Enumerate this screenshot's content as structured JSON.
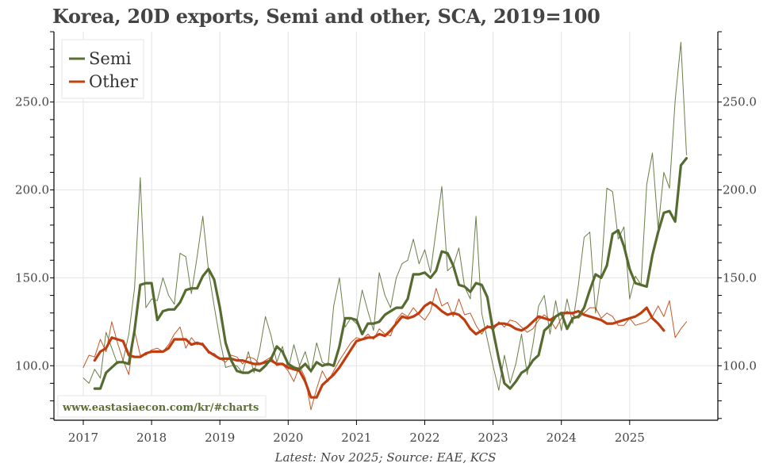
{
  "chart_data": {
    "type": "line",
    "title": "Korea, 20D exports, Semi and other, SCA, 2019=100",
    "xlabel": "",
    "ylabel": "",
    "source_note": "Latest: Nov 2025; Source: EAE, KCS",
    "watermark": "www.eastasiaecon.com/kr/#charts",
    "x_start": "2017-01",
    "x_end": "2025-11",
    "frequency": "monthly",
    "x_ticks": [
      "2017",
      "2018",
      "2019",
      "2020",
      "2021",
      "2022",
      "2023",
      "2024",
      "2025"
    ],
    "y_ticks": [
      "100.0",
      "150.0",
      "200.0",
      "250.0"
    ],
    "y_tick_values": [
      100,
      150,
      200,
      250
    ],
    "ylim": [
      69,
      290
    ],
    "y_minor_step": 10,
    "grid": true,
    "legend_position": "top-left",
    "dual_y_axis_mirror": true,
    "series": [
      {
        "name": "Semi",
        "legend": true,
        "style": "thin",
        "color": "#5a7034",
        "values": [
          93,
          90,
          98,
          93,
          119,
          110,
          101,
          103,
          118,
          144,
          207,
          133,
          138,
          137,
          150,
          140,
          135,
          164,
          162,
          141,
          162,
          185,
          154,
          134,
          115,
          99,
          100,
          100,
          96,
          108,
          96,
          109,
          128,
          117,
          102,
          111,
          98,
          112,
          100,
          108,
          96,
          113,
          102,
          100,
          134,
          150,
          122,
          127,
          124,
          143,
          131,
          120,
          153,
          140,
          133,
          150,
          158,
          160,
          172,
          158,
          166,
          153,
          177,
          202,
          154,
          157,
          167,
          145,
          138,
          185,
          130,
          115,
          100,
          86,
          106,
          90,
          101,
          118,
          95,
          112,
          134,
          140,
          118,
          137,
          120,
          138,
          124,
          146,
          173,
          176,
          130,
          153,
          201,
          199,
          172,
          179,
          138,
          151,
          146,
          203,
          221,
          178,
          210,
          201,
          251,
          284,
          220
        ]
      },
      {
        "name": "Semi 3mma",
        "legend": false,
        "style": "thick",
        "color": "#556b2f",
        "start_offset": 2,
        "values": [
          87,
          87,
          96,
          99,
          102,
          102,
          101,
          120,
          146,
          147,
          147,
          126,
          131,
          132,
          132,
          136,
          143,
          144,
          144,
          151,
          155,
          149,
          133,
          113,
          103,
          97,
          96,
          96,
          98,
          97,
          100,
          104,
          111,
          108,
          101,
          99,
          98,
          101,
          97,
          102,
          100,
          101,
          100,
          111,
          127,
          127,
          126,
          118,
          124,
          124,
          125,
          129,
          131,
          133,
          133,
          138,
          152,
          152,
          153,
          150,
          154,
          165,
          164,
          157,
          146,
          145,
          142,
          147,
          146,
          139,
          120,
          104,
          90,
          87,
          91,
          96,
          98,
          103,
          106,
          120,
          123,
          128,
          130,
          121,
          127,
          128,
          133,
          143,
          152,
          150,
          157,
          175,
          177,
          168,
          155,
          147,
          146,
          145,
          163,
          176,
          187,
          188,
          182,
          214,
          218
        ]
      },
      {
        "name": "Other",
        "legend": true,
        "style": "thin",
        "color": "#c0440e",
        "values": [
          99,
          106,
          105,
          115,
          108,
          125,
          113,
          103,
          95,
          120,
          106,
          106,
          109,
          110,
          108,
          112,
          118,
          122,
          110,
          116,
          112,
          113,
          107,
          107,
          104,
          102,
          106,
          105,
          101,
          105,
          104,
          101,
          103,
          105,
          100,
          101,
          97,
          91,
          100,
          93,
          75,
          87,
          97,
          91,
          97,
          103,
          108,
          113,
          116,
          115,
          118,
          115,
          121,
          118,
          117,
          126,
          130,
          128,
          133,
          129,
          126,
          131,
          144,
          134,
          136,
          128,
          138,
          129,
          130,
          123,
          118,
          123,
          120,
          125,
          122,
          126,
          125,
          122,
          119,
          121,
          126,
          129,
          126,
          121,
          127,
          131,
          129,
          127,
          130,
          133,
          133,
          127,
          130,
          128,
          123,
          123,
          127,
          123,
          124,
          125,
          128,
          134,
          128,
          137,
          116,
          121,
          125
        ]
      },
      {
        "name": "Other 3mma",
        "legend": false,
        "style": "thick",
        "color": "#bf3d0e",
        "start_offset": 2,
        "values": [
          103,
          108,
          110,
          116,
          115,
          114,
          106,
          105,
          105,
          107,
          108,
          108,
          108,
          110,
          115,
          115,
          115,
          112,
          113,
          112,
          108,
          106,
          104,
          104,
          104,
          103,
          103,
          102,
          101,
          101,
          102,
          103,
          101,
          101,
          99,
          98,
          97,
          91,
          82,
          82,
          89,
          92,
          95,
          99,
          104,
          109,
          114,
          115,
          116,
          116,
          118,
          117,
          120,
          124,
          128,
          127,
          128,
          130,
          134,
          136,
          134,
          131,
          129,
          130,
          129,
          126,
          121,
          118,
          120,
          122,
          122,
          124,
          124,
          123,
          121,
          120,
          122,
          125,
          128,
          127,
          126,
          128,
          130,
          130,
          130,
          131,
          129,
          128,
          127,
          126,
          124,
          124,
          125,
          126,
          127,
          128,
          130,
          133,
          127,
          124,
          120
        ]
      }
    ]
  }
}
